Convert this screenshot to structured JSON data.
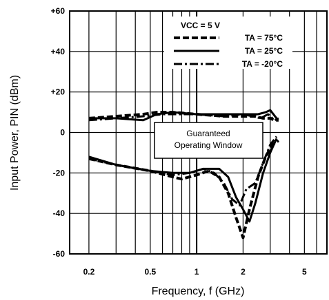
{
  "chart_data": {
    "type": "line",
    "title": "",
    "xlabel": "Frequency, f (GHz)",
    "ylabel": "Input Power, PIN (dBm)",
    "x_scale": "log",
    "xlim": [
      0.15,
      7
    ],
    "ylim": [
      -60,
      60
    ],
    "x_ticks": [
      0.2,
      0.5,
      1,
      2,
      5
    ],
    "x_tick_labels": [
      "0.2",
      "0.5",
      "1",
      "2",
      "5"
    ],
    "y_ticks": [
      -60,
      -40,
      -20,
      0,
      20,
      40,
      60
    ],
    "y_tick_labels": [
      "-60",
      "-40",
      "-20",
      "0",
      "+20",
      "+40",
      "+60"
    ],
    "grid": true,
    "legend": {
      "header": "VCC = 5 V",
      "placement": "top-right",
      "entries": [
        "TA = 75°C",
        "TA = 25°C",
        "TA = -20°C"
      ]
    },
    "annotation": {
      "lines": [
        "Guaranteed",
        "Operating Window"
      ]
    },
    "series": [
      {
        "name": "TA = 75°C",
        "style": "dashed",
        "upper": {
          "x": [
            0.2,
            0.3,
            0.45,
            0.55,
            0.7,
            1.0,
            1.5,
            2.0,
            2.4,
            2.7,
            3.0,
            3.2,
            3.4
          ],
          "y": [
            7,
            8,
            9,
            10,
            10,
            9,
            8,
            8,
            8,
            7,
            7,
            6,
            6
          ]
        },
        "lower": {
          "x": [
            0.2,
            0.3,
            0.5,
            0.7,
            0.8,
            1.0,
            1.2,
            1.4,
            1.6,
            1.8,
            2.0,
            2.2,
            2.5,
            2.8,
            3.1,
            3.4
          ],
          "y": [
            -13,
            -16,
            -19,
            -22,
            -23,
            -21,
            -19,
            -22,
            -30,
            -42,
            -52,
            -38,
            -22,
            -12,
            -6,
            -4
          ]
        }
      },
      {
        "name": "TA = 25°C",
        "style": "solid",
        "upper": {
          "x": [
            0.2,
            0.3,
            0.45,
            0.55,
            0.7,
            1.0,
            1.5,
            2.0,
            2.5,
            2.8,
            3.0,
            3.3
          ],
          "y": [
            7,
            7,
            6,
            9,
            10,
            9,
            9,
            9,
            9,
            10,
            11,
            7
          ]
        },
        "lower": {
          "x": [
            0.2,
            0.3,
            0.5,
            0.7,
            0.9,
            1.1,
            1.4,
            1.6,
            1.8,
            2.0,
            2.2,
            2.4,
            2.7,
            3.0,
            3.3
          ],
          "y": [
            -12,
            -16,
            -19,
            -20,
            -20,
            -18,
            -18,
            -22,
            -32,
            -38,
            -44,
            -35,
            -20,
            -10,
            -3
          ]
        }
      },
      {
        "name": "TA = -20°C",
        "style": "dash-dot",
        "upper": {
          "x": [
            0.2,
            0.3,
            0.45,
            0.6,
            0.8,
            1.0,
            1.5,
            2.0,
            2.3,
            2.6,
            2.9,
            3.2,
            3.4
          ],
          "y": [
            6,
            7,
            8,
            9,
            9,
            9,
            8,
            9,
            8,
            7,
            9,
            6,
            7
          ]
        },
        "lower": {
          "x": [
            0.2,
            0.3,
            0.5,
            0.7,
            0.9,
            1.1,
            1.3,
            1.5,
            1.7,
            1.9,
            2.1,
            2.4,
            2.7,
            3.0,
            3.3
          ],
          "y": [
            -13,
            -16,
            -19,
            -21,
            -20,
            -18,
            -20,
            -25,
            -33,
            -36,
            -28,
            -25,
            -15,
            -6,
            -2
          ]
        }
      }
    ]
  }
}
